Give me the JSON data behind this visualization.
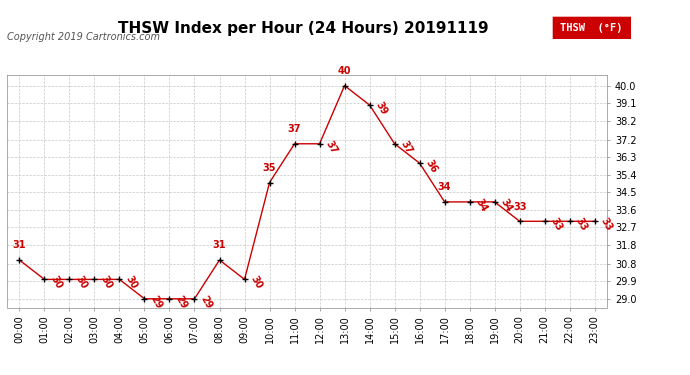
{
  "title": "THSW Index per Hour (24 Hours) 20191119",
  "copyright": "Copyright 2019 Cartronics.com",
  "legend_label": "THSW  (°F)",
  "hours": [
    0,
    1,
    2,
    3,
    4,
    5,
    6,
    7,
    8,
    9,
    10,
    11,
    12,
    13,
    14,
    15,
    16,
    17,
    18,
    19,
    20,
    21,
    22,
    23
  ],
  "values": [
    31,
    30,
    30,
    30,
    30,
    29,
    29,
    29,
    31,
    30,
    35,
    37,
    37,
    40,
    39,
    37,
    36,
    34,
    34,
    34,
    33,
    33,
    33,
    33
  ],
  "x_labels": [
    "00:00",
    "01:00",
    "02:00",
    "03:00",
    "04:00",
    "05:00",
    "06:00",
    "07:00",
    "08:00",
    "09:00",
    "10:00",
    "11:00",
    "12:00",
    "13:00",
    "14:00",
    "15:00",
    "16:00",
    "17:00",
    "18:00",
    "19:00",
    "20:00",
    "21:00",
    "22:00",
    "23:00"
  ],
  "y_ticks": [
    29.0,
    29.9,
    30.8,
    31.8,
    32.7,
    33.6,
    34.5,
    35.4,
    36.3,
    37.2,
    38.2,
    39.1,
    40.0
  ],
  "ylim": [
    28.55,
    40.55
  ],
  "line_color": "#cc0000",
  "marker_color": "#000000",
  "data_label_color": "#cc0000",
  "background_color": "#ffffff",
  "grid_color": "#c8c8c8",
  "title_fontsize": 11,
  "copyright_fontsize": 7,
  "label_fontsize": 7,
  "tick_fontsize": 7,
  "legend_fontsize": 7.5
}
